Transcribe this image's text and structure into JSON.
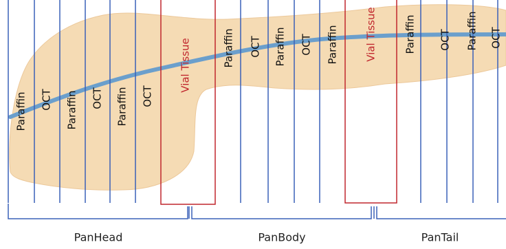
{
  "slices": [
    {
      "label": "Paraffin"
    },
    {
      "label": "OCT"
    },
    {
      "label": "Paraffin"
    },
    {
      "label": "OCT"
    },
    {
      "label": "Paraffin"
    },
    {
      "label": "OCT"
    },
    {
      "label": "Vial Tissue"
    },
    {
      "label": "Paraffin"
    },
    {
      "label": "OCT"
    },
    {
      "label": "Paraffin"
    },
    {
      "label": "OCT"
    },
    {
      "label": "Paraffin"
    },
    {
      "label": "Vial Tissue"
    },
    {
      "label": "Paraffin"
    },
    {
      "label": "OCT"
    },
    {
      "label": "Paraffin"
    },
    {
      "label": "OCT"
    }
  ],
  "sections": [
    {
      "label": "PanHead"
    },
    {
      "label": "PanBody"
    },
    {
      "label": "PanTail"
    }
  ]
}
